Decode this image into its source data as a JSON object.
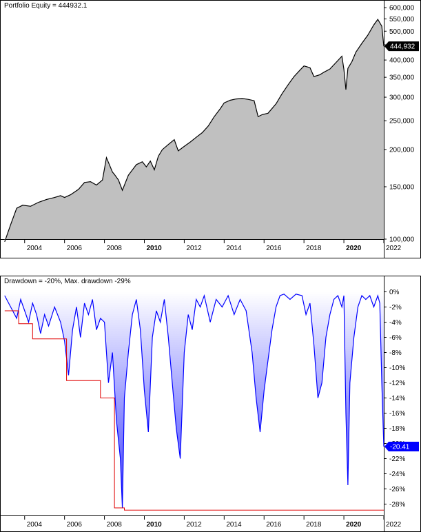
{
  "panels": {
    "equity": {
      "title": "Portfolio Equity = 444932.1"
    },
    "drawdown": {
      "title": "Drawdown = -20%, Max. drawdown -29%"
    }
  },
  "chart_data": [
    {
      "type": "area",
      "title": "Portfolio Equity = 444932.1",
      "y_scale": "log",
      "ylim": [
        100000,
        610000
      ],
      "y_ticks": [
        "100,000",
        "150,000",
        "200,000",
        "250,000",
        "300,000",
        "350,000",
        "400,000",
        "450,000",
        "500,000",
        "550,000",
        "600,000"
      ],
      "y_tick_values": [
        100000,
        150000,
        200000,
        250000,
        300000,
        350000,
        400000,
        450000,
        500000,
        550000,
        600000
      ],
      "x_ticks": [
        "2004",
        "2006",
        "2008",
        "2010",
        "2012",
        "2014",
        "2016",
        "2018",
        "2020",
        "2022"
      ],
      "x_ticks_bold": [
        "2010",
        "2020"
      ],
      "xlim": [
        2002.8,
        2022.0
      ],
      "last_value_label": "444,932",
      "last_value": 444932,
      "colors": {
        "fill": "#c0c0c0",
        "line": "#000000",
        "label_bg": "#000000",
        "label_text": "#ffffff"
      },
      "series": [
        {
          "x": [
            2003.0,
            2003.3,
            2003.6,
            2003.9,
            2004.3,
            2004.7,
            2005.1,
            2005.5,
            2005.8,
            2006.0,
            2006.3,
            2006.7,
            2007.0,
            2007.3,
            2007.6,
            2007.9,
            2008.1,
            2008.4,
            2008.5,
            2008.7,
            2008.9,
            2009.2,
            2009.6,
            2009.9,
            2010.1,
            2010.3,
            2010.5,
            2010.7,
            2010.9,
            2011.2,
            2011.5,
            2011.7,
            2012.0,
            2012.3,
            2012.6,
            2012.9,
            2013.2,
            2013.5,
            2013.8,
            2014.0,
            2014.3,
            2014.6,
            2014.9,
            2015.2,
            2015.5,
            2015.7,
            2015.9,
            2016.2,
            2016.6,
            2016.9,
            2017.2,
            2017.5,
            2017.8,
            2018.0,
            2018.3,
            2018.5,
            2018.8,
            2019.0,
            2019.3,
            2019.6,
            2019.9,
            2020.0,
            2020.1,
            2020.2,
            2020.4,
            2020.6,
            2020.9,
            2021.2,
            2021.5,
            2021.7,
            2021.9,
            2022.0
          ],
          "y": [
            98000,
            112000,
            127000,
            130000,
            129000,
            133000,
            136000,
            138000,
            140000,
            138000,
            141000,
            147000,
            155000,
            156000,
            152000,
            158000,
            188000,
            168000,
            165000,
            158000,
            146000,
            164000,
            178000,
            182000,
            175000,
            183000,
            171000,
            190000,
            200000,
            208000,
            216000,
            198000,
            205000,
            212000,
            220000,
            228000,
            240000,
            258000,
            274000,
            287000,
            293000,
            296000,
            297000,
            295000,
            292000,
            258000,
            262000,
            265000,
            285000,
            308000,
            330000,
            352000,
            370000,
            382000,
            377000,
            352000,
            357000,
            364000,
            373000,
            392000,
            412000,
            372000,
            318000,
            375000,
            395000,
            425000,
            455000,
            485000,
            525000,
            548000,
            520000,
            444932
          ]
        }
      ]
    },
    {
      "type": "area",
      "title": "Drawdown = -20%, Max. drawdown -29%",
      "ylim": [
        -29.5,
        0.5
      ],
      "y_ticks": [
        "0%",
        "-2%",
        "-4%",
        "-6%",
        "-8%",
        "-10%",
        "-12%",
        "-14%",
        "-16%",
        "-18%",
        "-20%",
        "-22%",
        "-24%",
        "-26%",
        "-28%"
      ],
      "y_tick_values": [
        0,
        -2,
        -4,
        -6,
        -8,
        -10,
        -12,
        -14,
        -16,
        -18,
        -20,
        -22,
        -24,
        -26,
        -28
      ],
      "x_ticks": [
        "2004",
        "2006",
        "2008",
        "2010",
        "2012",
        "2014",
        "2016",
        "2018",
        "2020",
        "2022"
      ],
      "x_ticks_bold": [
        "2010",
        "2020"
      ],
      "xlim": [
        2002.8,
        2022.0
      ],
      "last_value_label": "-20.41",
      "last_value": -20.41,
      "colors": {
        "line": "#0000ff",
        "fill_top": "#ffffff",
        "fill_bottom": "#3b3bff",
        "max_dd_line": "#e00000",
        "label_bg": "#0000ff",
        "label_text": "#ffffff"
      },
      "series": [
        {
          "name": "Drawdown",
          "x": [
            2003.0,
            2003.2,
            2003.4,
            2003.6,
            2003.8,
            2004.0,
            2004.2,
            2004.4,
            2004.6,
            2004.8,
            2005.0,
            2005.2,
            2005.5,
            2005.8,
            2006.0,
            2006.2,
            2006.4,
            2006.6,
            2006.8,
            2007.0,
            2007.2,
            2007.4,
            2007.6,
            2007.8,
            2008.0,
            2008.2,
            2008.4,
            2008.6,
            2008.8,
            2008.9,
            2009.0,
            2009.2,
            2009.4,
            2009.6,
            2009.8,
            2010.0,
            2010.2,
            2010.4,
            2010.6,
            2010.8,
            2011.0,
            2011.2,
            2011.4,
            2011.6,
            2011.8,
            2012.0,
            2012.2,
            2012.4,
            2012.6,
            2012.8,
            2013.0,
            2013.3,
            2013.6,
            2013.9,
            2014.2,
            2014.5,
            2014.8,
            2015.1,
            2015.4,
            2015.6,
            2015.8,
            2016.0,
            2016.2,
            2016.4,
            2016.6,
            2016.8,
            2017.0,
            2017.3,
            2017.6,
            2017.9,
            2018.1,
            2018.3,
            2018.5,
            2018.7,
            2018.9,
            2019.1,
            2019.3,
            2019.5,
            2019.7,
            2019.9,
            2020.0,
            2020.1,
            2020.2,
            2020.3,
            2020.5,
            2020.7,
            2020.9,
            2021.1,
            2021.3,
            2021.5,
            2021.7,
            2021.8,
            2021.9,
            2022.0
          ],
          "y": [
            -0.5,
            -1.5,
            -2.5,
            -3.5,
            -1.0,
            -2.5,
            -4.0,
            -1.5,
            -3.0,
            -5.5,
            -3.0,
            -4.5,
            -2.0,
            -4.0,
            -6.5,
            -11.0,
            -5.0,
            -2.0,
            -6.0,
            -1.5,
            -3.0,
            -1.0,
            -5.0,
            -3.5,
            -4.0,
            -12.0,
            -8.0,
            -17.0,
            -22.0,
            -28.5,
            -14.0,
            -8.0,
            -3.0,
            -1.0,
            -5.0,
            -13.0,
            -18.5,
            -6.0,
            -2.5,
            -4.0,
            -1.0,
            -6.0,
            -12.0,
            -18.0,
            -22.0,
            -8.0,
            -3.0,
            -5.0,
            -1.0,
            -2.0,
            -0.5,
            -4.0,
            -1.0,
            -2.0,
            -0.5,
            -3.0,
            -1.0,
            -2.5,
            -8.0,
            -14.0,
            -18.5,
            -13.0,
            -9.0,
            -5.0,
            -2.0,
            -0.5,
            -0.3,
            -1.0,
            -0.3,
            -0.5,
            -3.0,
            -1.5,
            -7.0,
            -14.0,
            -12.0,
            -6.0,
            -3.0,
            -1.0,
            -0.5,
            -2.0,
            -0.5,
            -16.0,
            -25.5,
            -12.0,
            -6.0,
            -2.0,
            -0.5,
            -1.0,
            -0.5,
            -2.0,
            -0.5,
            -1.5,
            -12.0,
            -20.41
          ]
        },
        {
          "name": "Max drawdown",
          "x": [
            2003.0,
            2003.7,
            2003.7,
            2004.4,
            2004.4,
            2006.1,
            2006.1,
            2007.8,
            2007.8,
            2008.5,
            2008.5,
            2009.0,
            2009.0,
            2022.0
          ],
          "y": [
            -2.5,
            -2.5,
            -4.2,
            -4.2,
            -6.2,
            -6.2,
            -11.7,
            -11.7,
            -14.0,
            -14.0,
            -28.5,
            -28.5,
            -28.8,
            -28.8
          ]
        }
      ]
    }
  ]
}
